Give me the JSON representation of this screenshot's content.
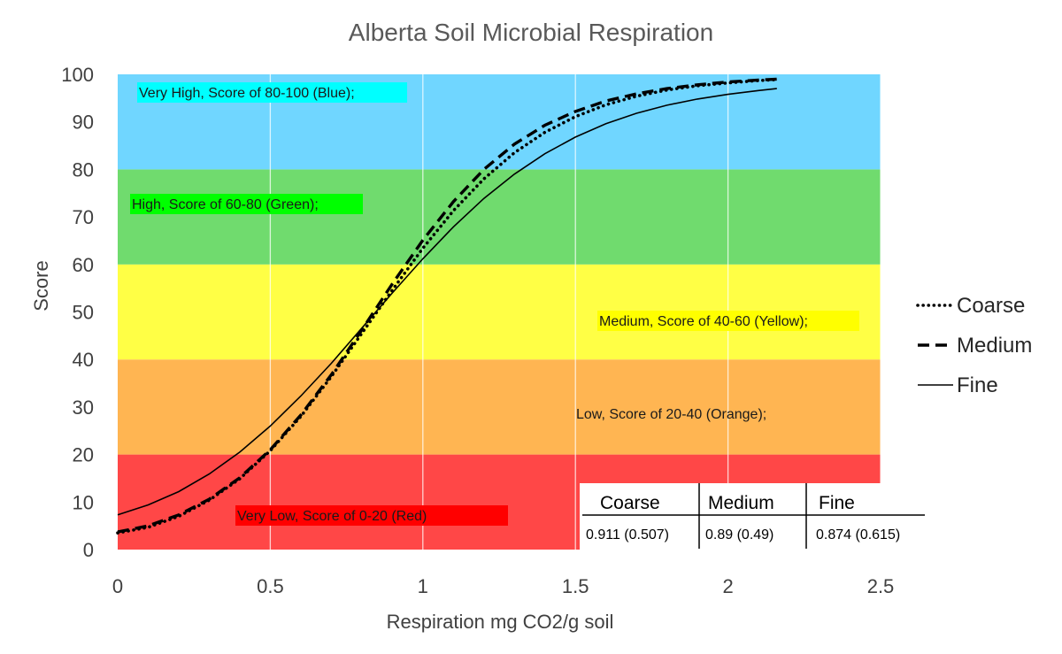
{
  "chart_data": {
    "type": "line",
    "title": "Alberta Soil Microbial Respiration",
    "xlabel": "Respiration mg CO2/g soil",
    "ylabel": "Score",
    "xlim": [
      0,
      2.5
    ],
    "ylim": [
      0,
      100
    ],
    "x_ticks": [
      "0",
      "0.5",
      "1",
      "1.5",
      "2",
      "2.5"
    ],
    "y_ticks": [
      "0",
      "10",
      "20",
      "30",
      "40",
      "50",
      "60",
      "70",
      "80",
      "90",
      "100"
    ],
    "grid": "vertical",
    "legend_position": "right",
    "bands": [
      {
        "label": "Very Low, Score of 0-20 (Red)",
        "y_from": 0,
        "y_to": 20,
        "color": "#ff4747",
        "label_bg": "#ff0000"
      },
      {
        "label": "Low, Score of 20-40 (Orange);",
        "y_from": 20,
        "y_to": 40,
        "color": "#ffb552",
        "label_bg": ""
      },
      {
        "label": "Medium, Score of 40-60 (Yellow);",
        "y_from": 40,
        "y_to": 60,
        "color": "#ffff45",
        "label_bg": "#ffff00"
      },
      {
        "label": "High, Score of 60-80 (Green);",
        "y_from": 60,
        "y_to": 80,
        "color": "#70db6e",
        "label_bg": "#00ff00"
      },
      {
        "label": "Very High, Score of 80-100 (Blue);",
        "y_from": 80,
        "y_to": 100,
        "color": "#70d6ff",
        "label_bg": "#00ffff"
      }
    ],
    "series": [
      {
        "name": "Coarse",
        "style": "dotted",
        "x": [
          0,
          0.1,
          0.2,
          0.3,
          0.4,
          0.5,
          0.6,
          0.7,
          0.8,
          0.9,
          1.0,
          1.1,
          1.2,
          1.3,
          1.4,
          1.5,
          1.6,
          1.7,
          1.8,
          1.9,
          2.0,
          2.1,
          2.16
        ],
        "y": [
          3.5,
          4.7,
          7.0,
          10.4,
          14.9,
          20.8,
          28.0,
          36.4,
          45.5,
          54.6,
          63.4,
          71.3,
          78.0,
          83.5,
          87.8,
          91.1,
          93.6,
          95.4,
          96.7,
          97.6,
          98.2,
          98.7,
          98.9
        ]
      },
      {
        "name": "Medium",
        "style": "dashed",
        "x": [
          0,
          0.1,
          0.2,
          0.3,
          0.4,
          0.5,
          0.6,
          0.7,
          0.8,
          0.9,
          1.0,
          1.1,
          1.2,
          1.3,
          1.4,
          1.5,
          1.6,
          1.7,
          1.8,
          1.9,
          2.0,
          2.1,
          2.16
        ],
        "y": [
          3.7,
          5.0,
          7.3,
          10.6,
          15.1,
          21.0,
          28.3,
          36.8,
          46.2,
          55.9,
          65.1,
          73.2,
          80.0,
          85.3,
          89.3,
          92.2,
          94.4,
          95.9,
          97.0,
          97.8,
          98.4,
          98.8,
          99.0
        ]
      },
      {
        "name": "Fine",
        "style": "solid",
        "x": [
          0,
          0.1,
          0.2,
          0.3,
          0.4,
          0.5,
          0.6,
          0.7,
          0.8,
          0.9,
          1.0,
          1.1,
          1.2,
          1.3,
          1.4,
          1.5,
          1.6,
          1.7,
          1.8,
          1.9,
          2.0,
          2.1,
          2.16
        ],
        "y": [
          7.3,
          9.4,
          12.2,
          15.9,
          20.5,
          26.0,
          32.3,
          39.2,
          46.6,
          54.0,
          61.2,
          67.9,
          73.9,
          79.0,
          83.3,
          86.8,
          89.6,
          91.8,
          93.5,
          94.8,
          95.8,
          96.6,
          97.0
        ]
      }
    ],
    "table": {
      "headers": [
        "Coarse",
        "Medium",
        "Fine"
      ],
      "values": [
        "0.911 (0.507)",
        "0.89 (0.49)",
        "0.874 (0.615)"
      ]
    }
  }
}
